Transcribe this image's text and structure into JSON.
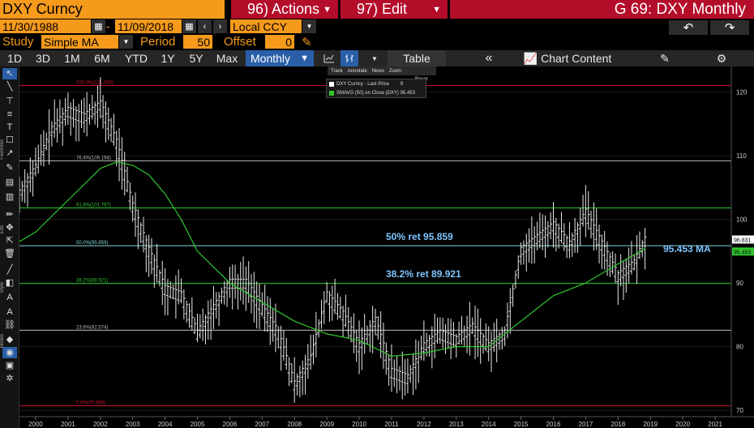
{
  "header": {
    "ticker": "DXY Curncy",
    "actions_label": "96) Actions",
    "edit_label": "97) Edit",
    "title": "G 69: DXY Monthly"
  },
  "range": {
    "start_date": "11/30/1988",
    "dash": "-",
    "end_date": "11/09/2018",
    "currency": "Local CCY"
  },
  "study": {
    "study_label": "Study",
    "study_value": "Simple MA",
    "period_label": "Period",
    "period_value": "50",
    "offset_label": "Offset",
    "offset_value": "0"
  },
  "toolbar": {
    "periods": [
      "1D",
      "3D",
      "1M",
      "6M",
      "YTD",
      "1Y",
      "5Y",
      "Max"
    ],
    "frequency": "Monthly",
    "table_label": "Table",
    "chart_content_label": "Chart Content"
  },
  "overlay_menu": {
    "track": "Track",
    "annotate": "Annotate",
    "news": "News",
    "zoom": "Zoom",
    "reset": "Reset"
  },
  "legend": {
    "line1": "DXY Curncy - Last Price",
    "line1_value": "9",
    "line2": "SMAVG (50) on Close (DXY) 95.453",
    "line1_color": "#ffffff",
    "line2_color": "#2fc62f"
  },
  "side_labels": {
    "favorites": "Favorites",
    "edit": "Edit",
    "style": "Style",
    "nodes": "Nodes"
  },
  "annotations": {
    "ret50": "50% ret 95.859",
    "ret382": "38.2% ret 89.921",
    "ma": "95.453 MA"
  },
  "chart_data": {
    "type": "line",
    "title": "",
    "x_tick_labels": [
      "2000",
      "2001",
      "2002",
      "2003",
      "2004",
      "2005",
      "2006",
      "2007",
      "2008",
      "2009",
      "2010",
      "2011",
      "2012",
      "2013",
      "2014",
      "2015",
      "2016",
      "2017",
      "2018",
      "2019",
      "2020",
      "2021"
    ],
    "y_tick_labels": [
      "70",
      "80",
      "90",
      "100",
      "110",
      "120"
    ],
    "ylim": [
      69,
      123
    ],
    "last_price_label": "96.831",
    "ma_label": "95.453",
    "fib_levels": [
      {
        "label": "100.0%(121.020)",
        "value": 121.02,
        "color": "#c8102e"
      },
      {
        "label": "76.4%(109.194)",
        "value": 109.194,
        "color": "#bbbbbb"
      },
      {
        "label": "61.8%(101.797)",
        "value": 101.797,
        "color": "#2fc62f"
      },
      {
        "label": "50.0%(95.859)",
        "value": 95.859,
        "color": "#7fd6d6"
      },
      {
        "label": "38.2%(89.921)",
        "value": 89.921,
        "color": "#2fc62f"
      },
      {
        "label": "23.6%(82.574)",
        "value": 82.574,
        "color": "#bbbbbb"
      },
      {
        "label": "0.0%(70.698)",
        "value": 70.698,
        "color": "#c8102e"
      }
    ],
    "series": [
      {
        "name": "DXY Curncy - Last Price",
        "color": "#ffffff",
        "x": [
          1999.0,
          1999.5,
          2000.0,
          2000.5,
          2001.0,
          2001.5,
          2002.0,
          2002.5,
          2003.0,
          2003.5,
          2004.0,
          2004.5,
          2005.0,
          2005.5,
          2006.0,
          2006.5,
          2007.0,
          2007.5,
          2008.0,
          2008.5,
          2009.0,
          2009.5,
          2010.0,
          2010.5,
          2011.0,
          2011.5,
          2012.0,
          2012.5,
          2013.0,
          2013.5,
          2014.0,
          2014.5,
          2015.0,
          2015.5,
          2016.0,
          2016.5,
          2017.0,
          2017.5,
          2018.0,
          2018.5,
          2018.85
        ],
        "y": [
          96,
          104,
          108,
          114,
          117,
          116,
          118,
          112,
          102,
          95,
          89,
          88,
          82,
          86,
          90,
          90,
          86,
          82,
          74,
          78,
          88,
          85,
          80,
          84,
          76,
          75,
          80,
          82,
          81,
          83,
          80,
          82,
          95,
          97,
          99,
          96,
          101,
          96,
          91,
          93,
          96.8
        ]
      },
      {
        "name": "SMAVG (50) on Close (DXY) 95.453",
        "color": "#2fc62f",
        "x": [
          1999.0,
          2000.0,
          2001.0,
          2002.0,
          2002.5,
          2003.0,
          2003.5,
          2004.0,
          2004.5,
          2005.0,
          2006.0,
          2007.0,
          2008.0,
          2009.0,
          2010.0,
          2011.0,
          2012.0,
          2013.0,
          2014.0,
          2015.0,
          2016.0,
          2017.0,
          2018.0,
          2018.85
        ],
        "y": [
          95,
          98,
          103,
          108,
          109,
          108.5,
          107,
          104,
          100,
          95,
          90,
          87,
          84,
          82,
          81,
          78.5,
          79,
          80,
          80,
          84,
          88,
          90,
          93,
          95.45
        ]
      }
    ]
  }
}
